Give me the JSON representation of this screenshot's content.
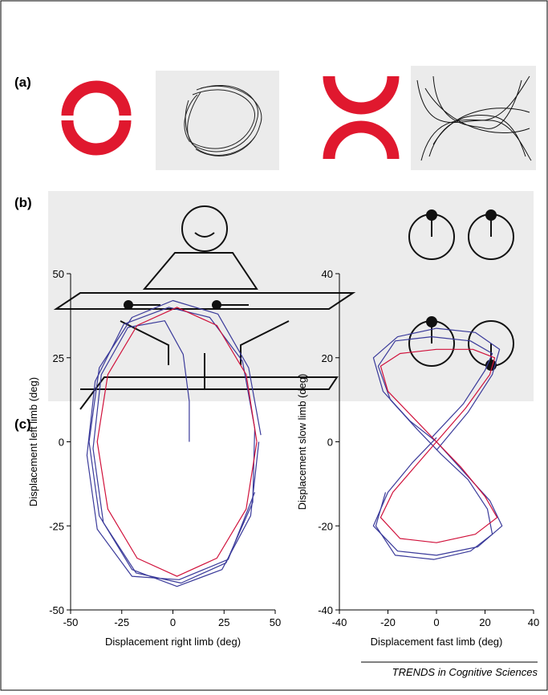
{
  "panels": [
    "(a)",
    "(b)",
    "(c)"
  ],
  "chart_data": [
    {
      "type": "line",
      "xlabel": "Displacement right limb (deg)",
      "ylabel": "Displacement left limb (deg)",
      "xlim": [
        -50,
        50
      ],
      "xticks": [
        -50,
        -25,
        0,
        25,
        50
      ],
      "ylim": [
        -50,
        50
      ],
      "yticks": [
        -50,
        -25,
        0,
        25,
        50
      ],
      "series": [
        {
          "color": "#3a3a9a",
          "x": [
            43,
            37,
            22,
            0,
            -20,
            -36,
            -41,
            -36,
            -20,
            2,
            24,
            38,
            42
          ],
          "values": [
            2,
            22,
            38,
            42,
            37,
            22,
            0,
            -22,
            -38,
            -43,
            -38,
            -22,
            0
          ]
        },
        {
          "color": "#3a3a9a",
          "x": [
            8,
            8,
            5,
            -4,
            -22,
            -35,
            -39,
            -34,
            -18,
            4,
            26,
            39,
            40,
            34,
            18,
            -2,
            -24,
            -38,
            -42,
            -37,
            -20,
            3,
            27,
            40
          ],
          "values": [
            0,
            12,
            26,
            36,
            34,
            20,
            -2,
            -24,
            -39,
            -42,
            -36,
            -18,
            4,
            24,
            37,
            40,
            35,
            18,
            -4,
            -26,
            -40,
            -41,
            -35,
            -15
          ]
        },
        {
          "color": "#d0103a",
          "x": [
            41,
            35.8,
            21.5,
            2,
            -17.5,
            -31.8,
            -37,
            -31.8,
            -17.5,
            2,
            21.5,
            35.8,
            41
          ],
          "values": [
            0,
            20,
            34.6,
            40,
            34.6,
            20,
            0,
            -20,
            -34.6,
            -40,
            -34.6,
            -20,
            0
          ]
        }
      ]
    },
    {
      "type": "line",
      "xlabel": "Displacement fast limb (deg)",
      "ylabel": "Displacement slow limb (deg)",
      "xlim": [
        -40,
        40
      ],
      "xticks": [
        -40,
        -20,
        0,
        20,
        40
      ],
      "ylim": [
        -40,
        40
      ],
      "yticks": [
        -40,
        -20,
        0,
        20,
        40
      ],
      "series": [
        {
          "color": "#3a3a9a",
          "x": [
            0,
            13,
            23,
            26,
            16,
            0,
            -16,
            -26,
            -22,
            -11,
            0,
            11,
            22,
            27,
            17,
            0,
            -16,
            -26,
            -20,
            -10,
            0
          ],
          "values": [
            -2,
            7,
            16,
            22,
            26,
            27,
            25,
            20,
            12,
            5,
            0,
            -7,
            -14,
            -20,
            -25,
            -27,
            -26,
            -20,
            -12,
            -5,
            1
          ]
        },
        {
          "color": "#3a3a9a",
          "x": [
            -2,
            11,
            20,
            23,
            14,
            -2,
            -17,
            -24,
            -19,
            -8,
            2,
            13,
            21,
            23,
            14,
            -1,
            -17,
            -25,
            -21
          ],
          "values": [
            1,
            9,
            17,
            21,
            24,
            25,
            24,
            18,
            10,
            3,
            -3,
            -9,
            -16,
            -22,
            -26,
            -28,
            -27,
            -20,
            -12
          ]
        },
        {
          "color": "#d0103a",
          "x": [
            0,
            12,
            22,
            24,
            15,
            0,
            -15,
            -23,
            -20,
            -10,
            0,
            10,
            20,
            25,
            16,
            0,
            -15,
            -23,
            -18,
            -9,
            0
          ],
          "values": [
            0,
            8,
            16,
            20,
            22,
            22,
            21,
            18,
            12,
            6,
            0,
            -6,
            -13,
            -18,
            -22,
            -24,
            -23,
            -18,
            -12,
            -6,
            0
          ]
        }
      ]
    }
  ],
  "footer": "TRENDS in Cognitive Sciences"
}
